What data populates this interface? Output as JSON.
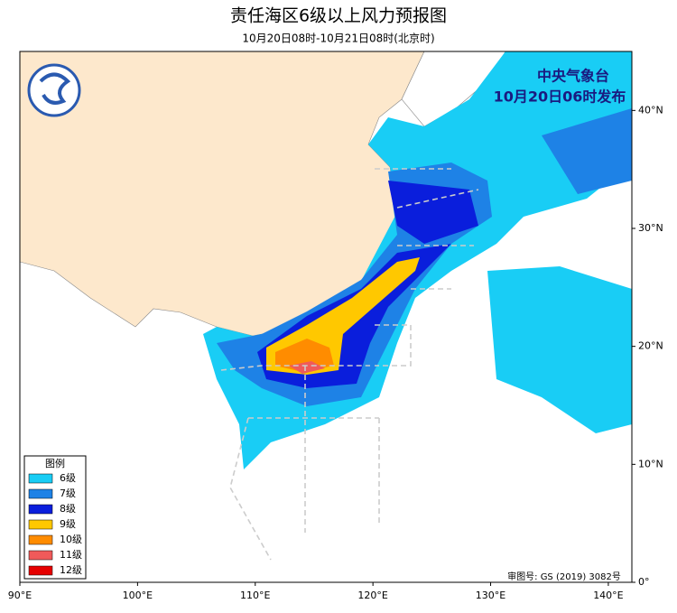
{
  "header": {
    "title": "责任海区6级以上风力预报图",
    "subtitle": "10月20日08时-10月21日08时(北京时)"
  },
  "issuer": {
    "line1": "中央气象台",
    "line2": "10月20日06时发布"
  },
  "map": {
    "lon_range": [
      90,
      142
    ],
    "lat_range": [
      0,
      45
    ],
    "lon_ticks": [
      {
        "value": 90,
        "label": "90°E"
      },
      {
        "value": 100,
        "label": "100°E"
      },
      {
        "value": 110,
        "label": "110°E"
      },
      {
        "value": 120,
        "label": "120°E"
      },
      {
        "value": 130,
        "label": "130°E"
      },
      {
        "value": 140,
        "label": "140°E"
      }
    ],
    "lat_ticks": [
      {
        "value": 0,
        "label": "0°"
      },
      {
        "value": 10,
        "label": "10°N"
      },
      {
        "value": 20,
        "label": "20°N"
      },
      {
        "value": 30,
        "label": "30°N"
      },
      {
        "value": 40,
        "label": "40°N"
      }
    ]
  },
  "legend": {
    "title": "图例",
    "items": [
      {
        "label": "6级",
        "color": "#19cdf5"
      },
      {
        "label": "7级",
        "color": "#1e82e6"
      },
      {
        "label": "8级",
        "color": "#0a1edc"
      },
      {
        "label": "9级",
        "color": "#ffc800"
      },
      {
        "label": "10级",
        "color": "#ff8c00"
      },
      {
        "label": "11级",
        "color": "#f05a5a"
      },
      {
        "label": "12级",
        "color": "#e60000"
      }
    ]
  },
  "approval": "审图号: GS (2019) 3082号"
}
